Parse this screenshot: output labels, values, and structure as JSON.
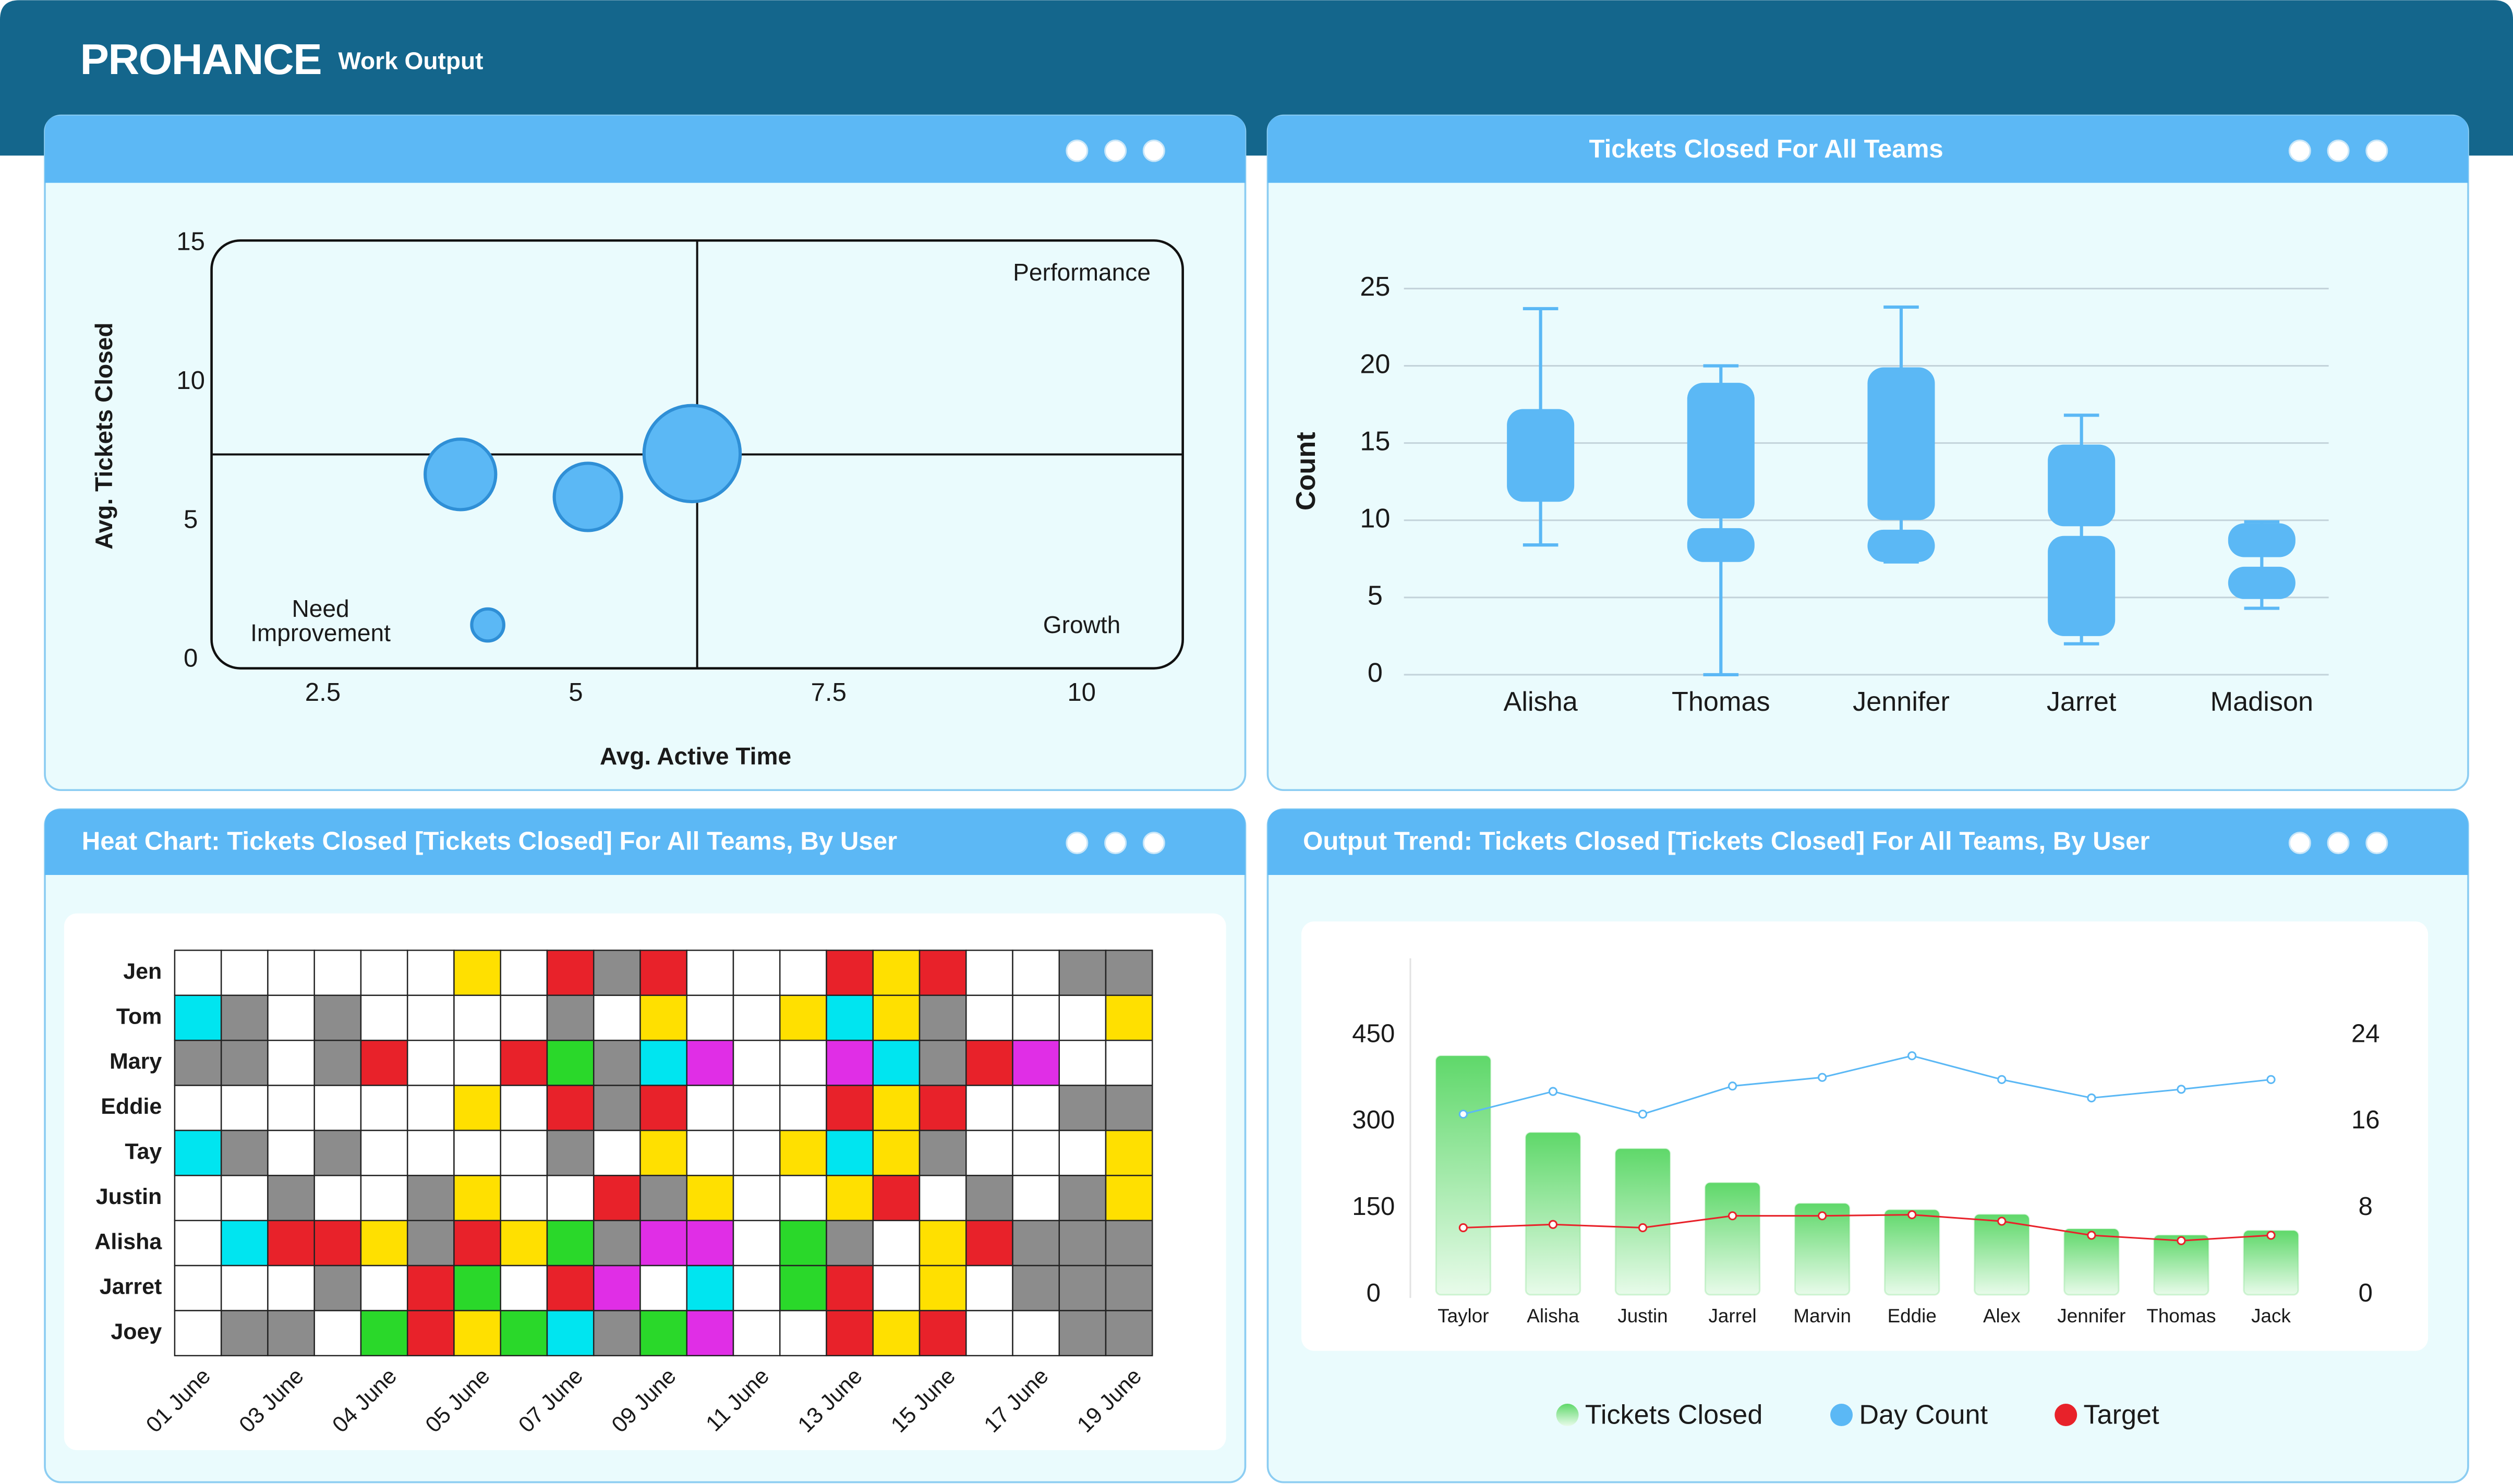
{
  "header": {
    "logo": "PROHANCE",
    "title": "Work Output"
  },
  "chart_data": [
    {
      "type": "bubble",
      "x_label": "Avg. Active Time",
      "y_label": "Avg. Tickets Closed",
      "xlim": [
        1.4,
        11
      ],
      "ylim": [
        -0.3,
        15.1
      ],
      "xticks": [
        2.5,
        5,
        7.5,
        10
      ],
      "yticks": [
        0,
        5,
        10,
        15
      ],
      "dividers": {
        "x": 6.2,
        "y": 7.4
      },
      "quadrant_labels": {
        "top_right": "Performance",
        "bottom_left": [
          "Need",
          "Improvement"
        ],
        "bottom_right": "Growth"
      },
      "series": [
        {
          "color": "#5bb8f5",
          "x": [
            3.86,
            5.12,
            6.15,
            4.13
          ],
          "values": [
            6.68,
            5.87,
            7.43,
            1.26
          ],
          "sizes": [
            22,
            21,
            30,
            10
          ]
        }
      ]
    },
    {
      "type": "box",
      "title": "Tickets Closed For All Teams",
      "y_label": "Count",
      "categories": [
        "Alisha",
        "Thomas",
        "Jennifer",
        "Jarret",
        "Madison"
      ],
      "ylim": [
        0,
        25
      ],
      "yticks": [
        0,
        5,
        10,
        15,
        20,
        25
      ],
      "grid": true,
      "color": "#5bb8f5",
      "min": [
        8.4,
        0,
        7.3,
        2.0,
        4.3
      ],
      "q1": [
        11.2,
        7.3,
        7.3,
        2.5,
        4.9
      ],
      "median": [
        null,
        9.8,
        9.7,
        9.3,
        7.3
      ],
      "q3": [
        17.2,
        18.9,
        19.9,
        14.9,
        9.8
      ],
      "max": [
        23.7,
        20,
        23.8,
        16.8,
        9.9
      ]
    },
    {
      "type": "heatmap",
      "title": "Heat Chart: Tickets Closed [Tickets Closed] For All Teams, By User",
      "rows": [
        "Jen",
        "Tom",
        "Mary",
        "Eddie",
        "Tay",
        "Justin",
        "Alisha",
        "Jarret",
        "Joey"
      ],
      "categories": [
        "01 June",
        null,
        "03 June",
        null,
        "04 June",
        null,
        "05 June",
        null,
        "07 June",
        null,
        "09 June",
        null,
        "11 June",
        null,
        "13 June",
        null,
        "15 June",
        null,
        "17 June",
        null,
        "19 June"
      ],
      "colors": [
        "#ffffff",
        "#8c8c8c",
        "#ffe000",
        "#e8222a",
        "#00e5f0",
        "#2ad82a",
        "#e02ee6"
      ],
      "values": [
        [
          0,
          0,
          0,
          0,
          0,
          0,
          2,
          0,
          3,
          1,
          3,
          0,
          0,
          0,
          3,
          2,
          3,
          0,
          0,
          1,
          1
        ],
        [
          4,
          1,
          0,
          1,
          0,
          0,
          0,
          0,
          1,
          0,
          2,
          0,
          0,
          2,
          4,
          2,
          1,
          0,
          0,
          0,
          2
        ],
        [
          1,
          1,
          0,
          1,
          3,
          0,
          0,
          3,
          5,
          1,
          4,
          6,
          0,
          0,
          6,
          4,
          1,
          3,
          6,
          0,
          0
        ],
        [
          0,
          0,
          0,
          0,
          0,
          0,
          2,
          0,
          3,
          1,
          3,
          0,
          0,
          0,
          3,
          2,
          3,
          0,
          0,
          1,
          1
        ],
        [
          4,
          1,
          0,
          1,
          0,
          0,
          0,
          0,
          1,
          0,
          2,
          0,
          0,
          2,
          4,
          2,
          1,
          0,
          0,
          0,
          2
        ],
        [
          0,
          0,
          1,
          0,
          0,
          1,
          2,
          0,
          0,
          3,
          1,
          2,
          0,
          0,
          2,
          3,
          0,
          1,
          0,
          1,
          2
        ],
        [
          0,
          4,
          3,
          3,
          2,
          1,
          3,
          2,
          5,
          1,
          6,
          6,
          0,
          5,
          1,
          0,
          2,
          3,
          1,
          1,
          1
        ],
        [
          0,
          0,
          0,
          1,
          0,
          3,
          5,
          0,
          3,
          6,
          0,
          4,
          0,
          5,
          3,
          0,
          2,
          0,
          1,
          1,
          1
        ],
        [
          0,
          1,
          1,
          0,
          5,
          3,
          2,
          5,
          4,
          1,
          5,
          6,
          0,
          0,
          3,
          2,
          3,
          0,
          0,
          1,
          1
        ]
      ]
    },
    {
      "type": "combo",
      "title": "Output Trend: Tickets Closed [Tickets Closed] For All Teams, By User",
      "categories": [
        "Taylor",
        "Alisha",
        "Justin",
        "Jarrel",
        "Marvin",
        "Eddie",
        "Alex",
        "Jennifer",
        "Thomas",
        "Jack"
      ],
      "ylim": [
        0,
        600
      ],
      "yticks": [
        0,
        150,
        300,
        450
      ],
      "y2lim": [
        0,
        32
      ],
      "y2ticks": [
        0,
        8,
        16,
        24
      ],
      "legend": "bottom",
      "series": [
        {
          "name": "Tickets Closed",
          "type": "bar",
          "color": "#5fd86a",
          "values": [
            414,
            281,
            253,
            194,
            158,
            147,
            139,
            114,
            103,
            111
          ]
        },
        {
          "name": "Day Count",
          "type": "line",
          "axis": "y2",
          "color": "#5bb8f5",
          "values": [
            16.7,
            18.8,
            16.7,
            19.3,
            20.1,
            22.1,
            19.9,
            18.2,
            19.0,
            19.9
          ]
        },
        {
          "name": "Target",
          "type": "line",
          "axis": "y2",
          "color": "#e8222a",
          "values": [
            6.2,
            6.5,
            6.2,
            7.3,
            7.3,
            7.4,
            6.8,
            5.5,
            5.0,
            5.5
          ]
        }
      ]
    }
  ]
}
